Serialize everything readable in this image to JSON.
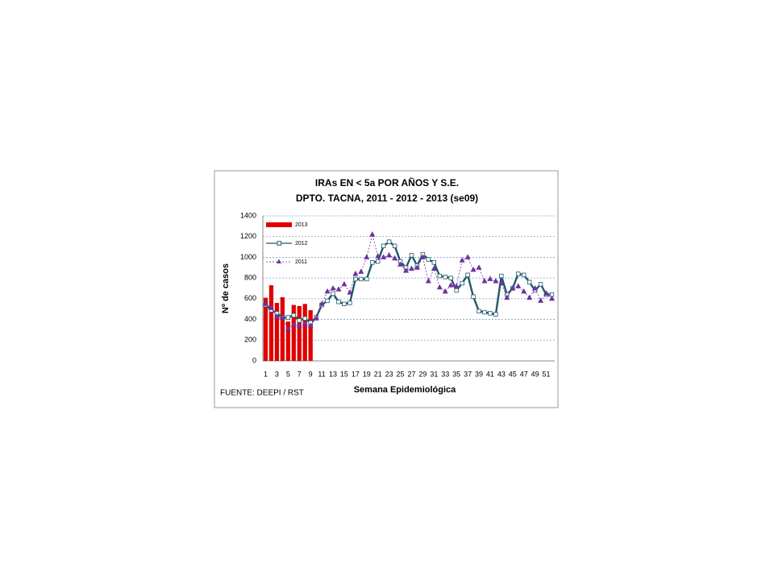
{
  "chart_data": {
    "type": "bar",
    "title": "IRAs  EN < 5a POR AÑOS Y S.E.",
    "subtitle": "DPTO. TACNA, 2011 - 2012 -  2013  (se09)",
    "y_label": "Nº de casos",
    "x_label": "Semana Epidemiológica",
    "source": "FUENTE: DEEPI / RST",
    "categories": [
      "1",
      null,
      "3",
      null,
      "5",
      null,
      "7",
      null,
      "9",
      null,
      "11",
      null,
      "13",
      null,
      "15",
      null,
      "17",
      null,
      "19",
      null,
      "21",
      null,
      "23",
      null,
      "25",
      null,
      "27",
      null,
      "29",
      null,
      "31",
      null,
      "33",
      null,
      "35",
      null,
      "37",
      null,
      "39",
      null,
      "41",
      null,
      "43",
      null,
      "45",
      null,
      "47",
      null,
      "49",
      null,
      "51",
      null
    ],
    "ylim": [
      0,
      1400
    ],
    "yticks": [
      0,
      200,
      400,
      600,
      800,
      1000,
      1200,
      1400
    ],
    "grid": true,
    "legend": "top-left",
    "series": [
      {
        "name": "2013",
        "type": "bar",
        "color": "#e00000",
        "values": [
          610,
          730,
          560,
          615,
          380,
          540,
          530,
          550,
          490,
          null,
          null,
          null,
          null,
          null,
          null,
          null,
          null,
          null,
          null,
          null,
          null,
          null,
          null,
          null,
          null,
          null,
          null,
          null,
          null,
          null,
          null,
          null,
          null,
          null,
          null,
          null,
          null,
          null,
          null,
          null,
          null,
          null,
          null,
          null,
          null,
          null,
          null,
          null,
          null,
          null,
          null,
          null
        ]
      },
      {
        "name": "2012",
        "type": "line",
        "color": "#215968",
        "values": [
          540,
          490,
          460,
          420,
          420,
          440,
          390,
          410,
          370,
          420,
          540,
          580,
          650,
          570,
          550,
          560,
          790,
          790,
          790,
          950,
          960,
          1110,
          1150,
          1110,
          960,
          900,
          1020,
          920,
          1030,
          980,
          950,
          820,
          810,
          800,
          680,
          750,
          830,
          620,
          480,
          470,
          460,
          450,
          820,
          640,
          700,
          840,
          830,
          760,
          680,
          740,
          640,
          640
        ]
      },
      {
        "name": "2011",
        "type": "dashed",
        "color": "#7030a0",
        "values": [
          550,
          510,
          430,
          420,
          310,
          350,
          340,
          360,
          340,
          410,
          550,
          670,
          700,
          690,
          740,
          660,
          840,
          860,
          1000,
          1220,
          1010,
          1000,
          1020,
          990,
          930,
          870,
          890,
          900,
          1000,
          770,
          890,
          710,
          670,
          730,
          720,
          970,
          1000,
          880,
          900,
          770,
          790,
          770,
          750,
          610,
          700,
          720,
          670,
          610,
          700,
          580,
          650,
          600
        ]
      }
    ]
  }
}
